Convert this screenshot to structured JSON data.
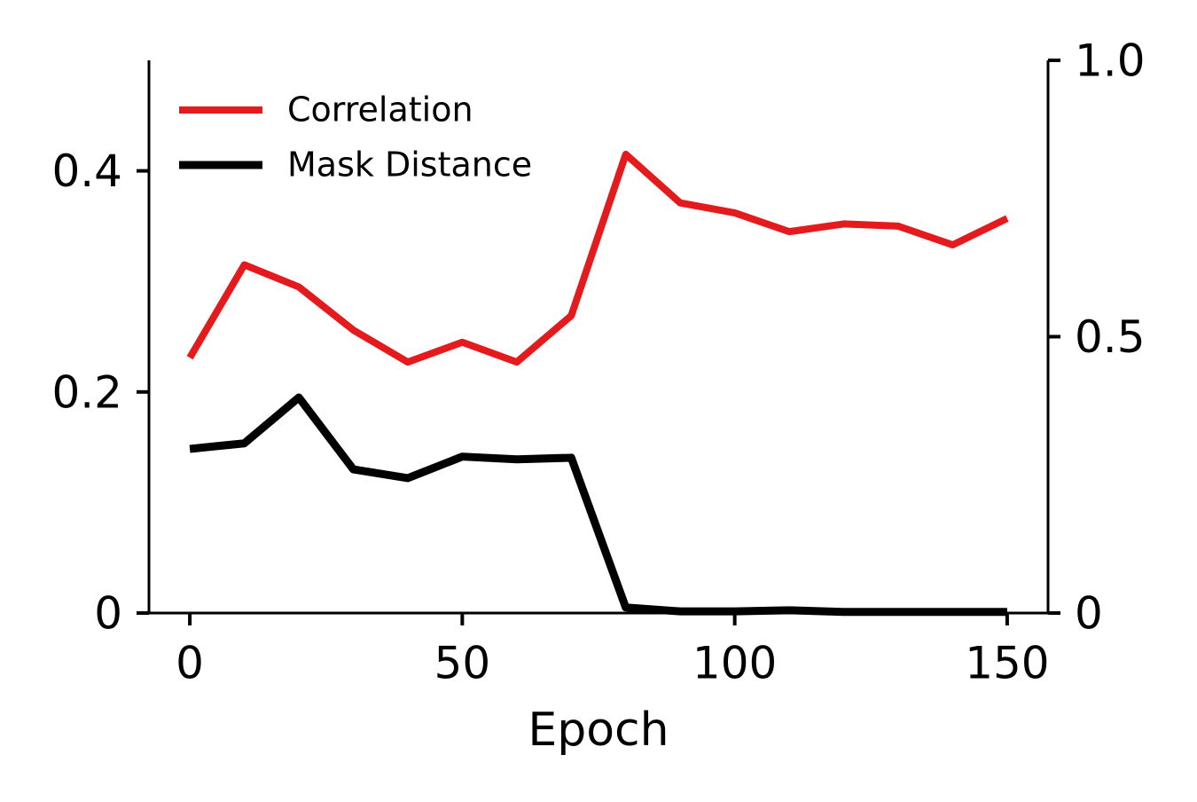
{
  "chart_data": {
    "type": "line",
    "xlabel": "Epoch",
    "x": [
      0,
      10,
      20,
      30,
      40,
      50,
      60,
      70,
      80,
      90,
      100,
      110,
      120,
      130,
      140,
      150
    ],
    "series": [
      {
        "name": "Correlation",
        "color": "#e41a1c",
        "axis": "y",
        "values": [
          0.231,
          0.315,
          0.295,
          0.256,
          0.227,
          0.245,
          0.227,
          0.269,
          0.415,
          0.371,
          0.362,
          0.345,
          0.352,
          0.35,
          0.333,
          0.357
        ]
      },
      {
        "name": "Mask Distance",
        "color": "#000000",
        "axis": "y2",
        "values": [
          0.297,
          0.307,
          0.39,
          0.26,
          0.244,
          0.283,
          0.278,
          0.281,
          0.01,
          0.003,
          0.003,
          0.005,
          0.002,
          0.002,
          0.002,
          0.002
        ]
      }
    ],
    "xlim": [
      -7.5,
      157.5
    ],
    "xticks": [
      0,
      50,
      100,
      150
    ],
    "ylim": [
      0,
      0.5
    ],
    "yticks": [
      0,
      0.2,
      0.4
    ],
    "y2lim": [
      0,
      1
    ],
    "y2ticks": [
      0,
      0.5,
      {
        "value": 1,
        "label": "1.0"
      }
    ],
    "legend": "upper left",
    "grid": false
  }
}
